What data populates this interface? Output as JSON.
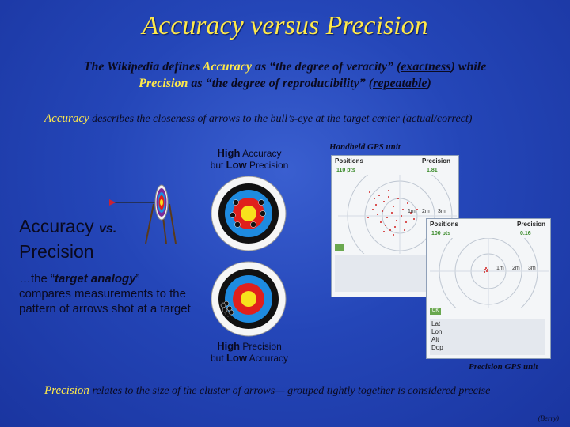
{
  "title": "Accuracy versus Precision",
  "intro": {
    "line1_a": "The Wikipedia defines ",
    "line1_acc": "Accuracy",
    "line1_b": " as “the degree of veracity” (",
    "line1_ex": "exactness",
    "line1_c": ") while",
    "line2_prec": "Precision",
    "line2_a": " as “the degree of reproducibility” (",
    "line2_rep": "repeatable",
    "line2_b": ")"
  },
  "accuracy_line": {
    "term": "Accuracy",
    "a": " describes the ",
    "u": "closeness of arrows to the bull’s-eye",
    "b": " at the target center (actual/correct)"
  },
  "precision_line": {
    "term": "Precision",
    "a": " relates to the ",
    "u": "size of the cluster of arrows",
    "b": "— grouped tightly together is considered precise"
  },
  "caption_top": {
    "high": "High",
    "high_rest": " Accuracy",
    "low_pre": "but ",
    "low": "Low",
    "low_rest": " Precision"
  },
  "caption_bottom": {
    "high": "High",
    "high_rest": " Precision",
    "low_pre": "but ",
    "low": "Low",
    "low_rest": " Accuracy"
  },
  "big_label": {
    "a": "Accuracy ",
    "vs": "vs.",
    "b": "Precision"
  },
  "analogy": {
    "a": "…the “",
    "em": "target analogy",
    "b": "” compares measurements to the pattern of arrows shot at a target"
  },
  "gps_top_label": "Handheld GPS unit",
  "gps_bottom_label": "Precision GPS unit",
  "gps_top": {
    "positions": "Positions",
    "precision": "Precision",
    "pos_val": "110",
    "pos_unit": "pts",
    "prec_val": "1.81",
    "rings": [
      "1m",
      "2m",
      "3m"
    ]
  },
  "gps_bottom": {
    "positions": "Positions",
    "precision": "Precision",
    "pos_val": "100",
    "pos_unit": "pts",
    "prec_val": "0.16",
    "rings": [
      "1m",
      "2m",
      "3m"
    ],
    "ok": "OK",
    "rows": [
      "Lat",
      "Lon",
      "Alt",
      "Dop"
    ]
  },
  "credit": "(Berry)",
  "colors": {
    "title": "#ffe94a",
    "background": "#2446b8"
  }
}
